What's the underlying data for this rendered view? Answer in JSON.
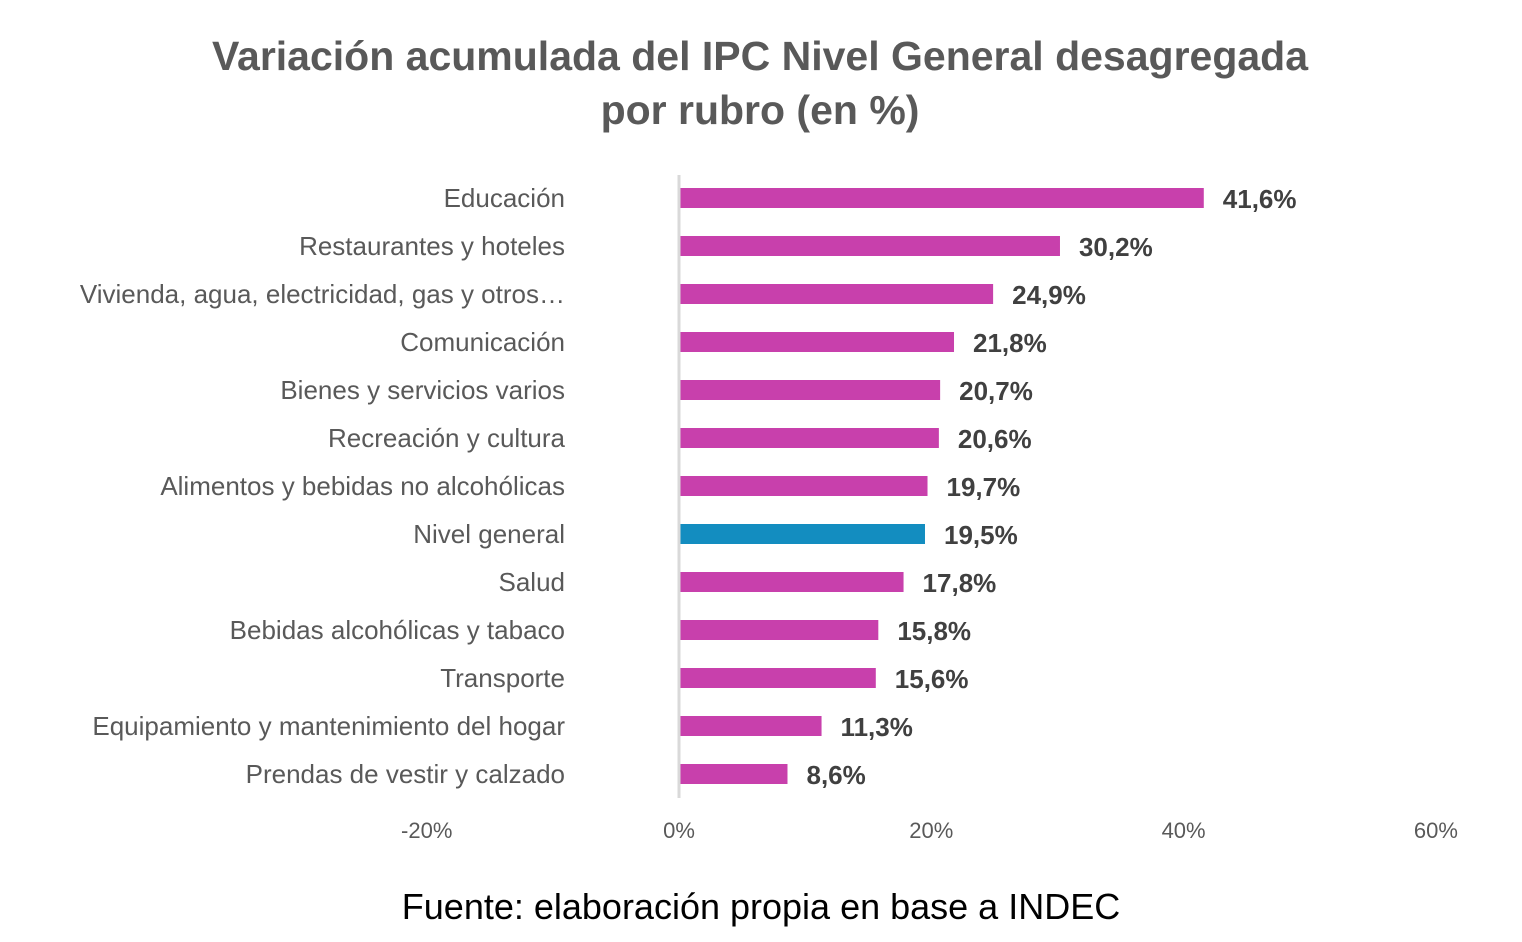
{
  "chart_data": {
    "type": "bar",
    "orientation": "horizontal",
    "title": "Variación acumulada del IPC Nivel General desagregada por rubro (en %)",
    "title_lines": [
      "Variación acumulada del IPC Nivel General desagregada",
      "por rubro (en %)"
    ],
    "categories": [
      "Educación",
      "Restaurantes y hoteles",
      "Vivienda, agua, electricidad, gas y otros…",
      "Comunicación",
      "Bienes y servicios varios",
      "Recreación y cultura",
      "Alimentos y bebidas no alcohólicas",
      "Nivel general",
      "Salud",
      "Bebidas alcohólicas y tabaco",
      "Transporte",
      "Equipamiento y mantenimiento del hogar",
      "Prendas de vestir y calzado"
    ],
    "values": [
      41.6,
      30.2,
      24.9,
      21.8,
      20.7,
      20.6,
      19.7,
      19.5,
      17.8,
      15.8,
      15.6,
      11.3,
      8.6
    ],
    "data_labels": [
      "41,6%",
      "30,2%",
      "24,9%",
      "21,8%",
      "20,7%",
      "20,6%",
      "19,7%",
      "19,5%",
      "17,8%",
      "15,8%",
      "15,6%",
      "11,3%",
      "8,6%"
    ],
    "highlight_category": "Nivel general",
    "colors": {
      "default": "#C840AC",
      "highlight": "#138DC0",
      "axis": "#D9D9D9"
    },
    "xlim": [
      -20,
      60
    ],
    "x_ticks": [
      -20,
      0,
      20,
      40,
      60
    ],
    "x_tick_labels": [
      "-20%",
      "0%",
      "20%",
      "40%",
      "60%"
    ],
    "xlabel": "",
    "ylabel": "",
    "grid": false,
    "legend": "none"
  },
  "source": "Fuente: elaboración propia en base a INDEC"
}
